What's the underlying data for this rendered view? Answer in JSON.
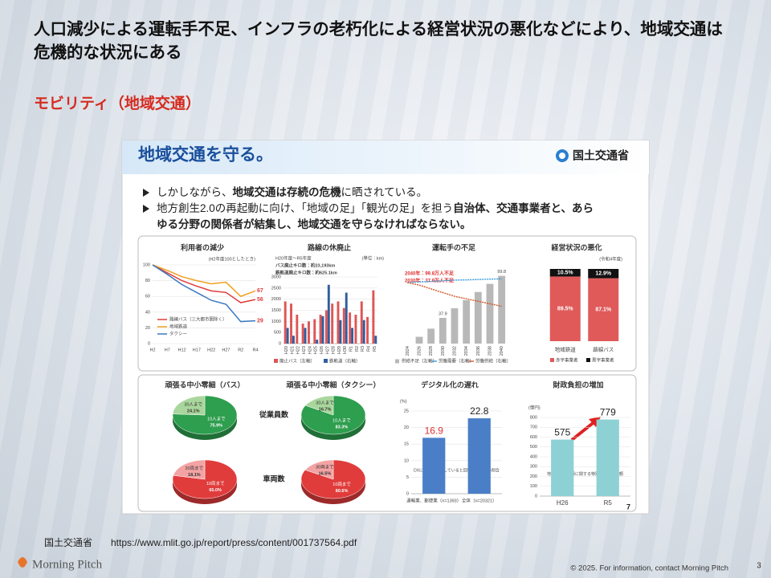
{
  "header": {
    "title": "人口減少による運転手不足、インフラの老朽化による経営状況の悪化などにより、地域交通は危機的な状況にある",
    "subtitle": "モビリティ（地域交通）"
  },
  "slide": {
    "title": "地域交通を守る。",
    "logo": "国土交通省",
    "page": "7",
    "bullets": [
      {
        "lines": [
          [
            {
              "text": "しかしながら、"
            },
            {
              "text": "地域交通は存続の危機",
              "bold": true
            },
            {
              "text": "に晒されている。"
            }
          ]
        ]
      },
      {
        "lines": [
          [
            {
              "text": "地方創生2.0の再起動に向け、「地域の足」「観光の足」を担う"
            },
            {
              "text": "自治体、交通事業者と、あら",
              "bold": true
            }
          ],
          [
            {
              "text": "ゆる分野の関係者が結集し、地域交通を守らなければならない。",
              "bold": true
            }
          ]
        ]
      }
    ],
    "panels": [
      {
        "title": "利用者の減少",
        "note": "(H2年度100としたとき)",
        "chart": {
          "type": "line",
          "categories": [
            "H2",
            "H7",
            "H12",
            "H17",
            "H22",
            "H27",
            "R2",
            "R4"
          ],
          "ylim": [
            0,
            100
          ],
          "yticks": [
            0,
            20,
            40,
            60,
            80,
            100
          ],
          "end_label_color": "#e03c3c",
          "series": [
            {
              "name": "路線バス（三大都市圏除く）",
              "color": "#e03c3c",
              "values": [
                100,
                90,
                80,
                73,
                67,
                65,
                52,
                56
              ]
            },
            {
              "name": "地域鉄道",
              "color": "#f0a020",
              "values": [
                100,
                93,
                85,
                80,
                76,
                78,
                60,
                67
              ]
            },
            {
              "name": "タクシー",
              "color": "#3a78c0",
              "values": [
                100,
                88,
                75,
                65,
                55,
                50,
                28,
                29
              ]
            }
          ]
        }
      },
      {
        "title": "路線の休廃止",
        "notes": [
          "H20年度〜R5年度",
          "バス廃止キロ数：約23,193km",
          "鉄軌道廃止キロ数：約625.1km"
        ],
        "unit": "(単位：km)",
        "chart": {
          "type": "bar",
          "categories": [
            "H20",
            "H21",
            "H22",
            "H23",
            "H24",
            "H25",
            "H26",
            "H27",
            "H28",
            "H29",
            "H30",
            "R1",
            "R2",
            "R3",
            "R4",
            "R5"
          ],
          "ylim": [
            0,
            3000
          ],
          "yticks": [
            0,
            500,
            1000,
            1500,
            2000,
            2500,
            3000
          ],
          "y2lim": [
            0,
            170
          ],
          "series": [
            {
              "name": "廃止バス（左軸）",
              "color": "#e05555",
              "values": [
                1900,
                1800,
                1300,
                900,
                1000,
                1100,
                1300,
                1500,
                1800,
                1900,
                1600,
                1400,
                1300,
                1900,
                1200,
                2400
              ]
            },
            {
              "name": "鉄軌道（右軸）",
              "color": "#2f5f9e",
              "axis": "y2",
              "values": [
                40,
                20,
                0,
                40,
                0,
                10,
                70,
                150,
                0,
                60,
                130,
                40,
                0,
                60,
                0,
                20
              ]
            }
          ]
        }
      },
      {
        "title": "運転手の不足",
        "annotations": [
          "2040年：99.8万人不足",
          "2030年：37.9万人不足"
        ],
        "chart": {
          "type": "bar_line",
          "categories": [
            "2024",
            "2026",
            "2028",
            "2030",
            "2032",
            "2034",
            "2036",
            "2038",
            "2040"
          ],
          "ylim": [
            0,
            110
          ],
          "y2lim": [
            0,
            60
          ],
          "series": [
            {
              "name": "供給不足（左軸）",
              "color": "#b8b8b8",
              "values": [
                0,
                10,
                22,
                37.9,
                52,
                64,
                76,
                88,
                99.8
              ],
              "value_labels": [
                null,
                null,
                null,
                "37.9",
                null,
                null,
                null,
                null,
                "99.8"
              ]
            },
            {
              "name": "労働需要（右軸）",
              "color": "#3a9ad9",
              "axis": "y2",
              "values": [
                49,
                49.5,
                50,
                50.5,
                51,
                51.2,
                51.5,
                51.8,
                52
              ]
            },
            {
              "name": "労働供給（右軸）",
              "color": "#d0582a",
              "axis": "y2",
              "values": [
                49,
                47,
                44,
                41,
                38,
                36,
                34,
                32,
                30
              ]
            }
          ]
        }
      },
      {
        "title": "経営状況の悪化",
        "note": "(令和4年度)",
        "chart": {
          "type": "stacked_bar",
          "categories": [
            "地域鉄道",
            "路線バス"
          ],
          "ylim": [
            0,
            100
          ],
          "series": [
            {
              "name": "赤字事業者",
              "color": "#e05a5a",
              "values": [
                89.5,
                87.1
              ],
              "value_labels": [
                "89.5%",
                "87.1%"
              ]
            },
            {
              "name": "黒字事業者",
              "color": "#111111",
              "values": [
                10.5,
                12.9
              ],
              "value_labels": [
                "10.5%",
                "12.9%"
              ]
            }
          ]
        }
      },
      {
        "title": "頑張る中小零細（バス）",
        "row_labels": [
          "従業員数",
          "車両数"
        ],
        "chart": {
          "type": "pie",
          "pies": [
            {
              "labels": [
                "10人まで",
                "30人まで"
              ],
              "values": [
                75.9,
                24.1
              ],
              "value_labels": [
                "75.9%",
                "24.1%"
              ],
              "colors": [
                "#2e9e4f",
                "#a9d69c"
              ]
            },
            {
              "labels": [
                "10両まで",
                "30両まで"
              ],
              "values": [
                65.0,
                18.1
              ],
              "value_labels": [
                "65.0%",
                "18.1%"
              ],
              "colors": [
                "#e03c3c",
                "#f3a3a3"
              ]
            }
          ]
        }
      },
      {
        "title": "頑張る中小零細（タクシー）",
        "chart": {
          "type": "pie",
          "pies": [
            {
              "labels": [
                "10人まで",
                "30人まで"
              ],
              "values": [
                83.3,
                16.7
              ],
              "value_labels": [
                "83.3%",
                "16.7%"
              ],
              "colors": [
                "#2e9e4f",
                "#a9d69c"
              ]
            },
            {
              "labels": [
                "10両まで",
                "30両まで"
              ],
              "values": [
                80.6,
                16.5
              ],
              "value_labels": [
                "80.6%",
                "16.5%"
              ],
              "colors": [
                "#e03c3c",
                "#f3a3a3"
              ]
            }
          ]
        }
      },
      {
        "title": "デジタル化の遅れ",
        "unit": "(%)",
        "annotation": "DXに取組を実施していると回答した企業の割合",
        "chart": {
          "type": "bar",
          "categories": [
            "運輸業、郵便業（n=1393）",
            "全体（n=20321）"
          ],
          "values": [
            16.9,
            22.8
          ],
          "color": "#4a7fc7",
          "label_colors": [
            "#e03030",
            "#222222"
          ],
          "ylim": [
            0,
            25
          ],
          "yticks": [
            0,
            5,
            10,
            15,
            20,
            25
          ]
        }
      },
      {
        "title": "財政負担の増加",
        "unit": "(億円)",
        "annotation": "地域交通の確保に関する特別交付税交付額",
        "chart": {
          "type": "bar",
          "categories": [
            "H26",
            "R5"
          ],
          "values": [
            575,
            779
          ],
          "color": "#8ed1d4",
          "label_colors": [
            "#222222",
            "#222222"
          ],
          "ylim": [
            0,
            800
          ],
          "yticks": [
            0,
            100,
            200,
            300,
            400,
            500,
            600,
            700,
            800
          ]
        }
      }
    ]
  },
  "source": {
    "org": "国土交通省",
    "url": "https://www.mlit.go.jp/report/press/content/001737564.pdf"
  },
  "footer": {
    "brand": "Morning Pitch",
    "copyright": "© 2025. For information, contact Morning Pitch",
    "page": "3"
  }
}
